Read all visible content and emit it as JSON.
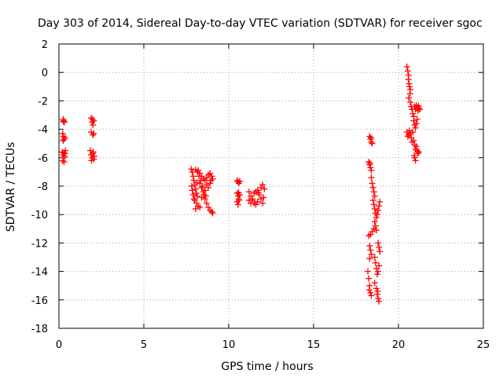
{
  "chart_data": {
    "type": "scatter",
    "title": "Day 303 of 2014, Sidereal Day-to-day VTEC variation (SDTVAR) for receiver sgoc",
    "xlabel": "GPS time / hours",
    "ylabel": "SDTVAR / TECUs",
    "xlim": [
      0,
      25
    ],
    "ylim": [
      -18,
      2
    ],
    "xticks": [
      0,
      5,
      10,
      15,
      20,
      25
    ],
    "yticks": [
      2,
      0,
      -2,
      -4,
      -6,
      -8,
      -10,
      -12,
      -14,
      -16,
      -18
    ],
    "grid": true,
    "marker": "+",
    "color": "#ff0000",
    "series": [
      {
        "name": "SDTVAR",
        "points": [
          [
            0.25,
            -3.3
          ],
          [
            0.28,
            -3.4
          ],
          [
            0.32,
            -3.5
          ],
          [
            0.26,
            -3.45
          ],
          [
            0.22,
            -4.3
          ],
          [
            0.26,
            -4.5
          ],
          [
            0.3,
            -4.7
          ],
          [
            0.35,
            -4.6
          ],
          [
            0.24,
            -4.8
          ],
          [
            0.2,
            -5.6
          ],
          [
            0.25,
            -5.8
          ],
          [
            0.3,
            -6.0
          ],
          [
            0.35,
            -5.7
          ],
          [
            0.38,
            -5.5
          ],
          [
            0.22,
            -6.2
          ],
          [
            0.3,
            -6.3
          ],
          [
            0.32,
            -5.9
          ],
          [
            0.28,
            -5.65
          ],
          [
            1.9,
            -3.2
          ],
          [
            1.95,
            -3.5
          ],
          [
            2.0,
            -3.7
          ],
          [
            2.05,
            -3.4
          ],
          [
            1.98,
            -3.3
          ],
          [
            1.9,
            -4.2
          ],
          [
            2.0,
            -4.4
          ],
          [
            2.05,
            -4.3
          ],
          [
            1.85,
            -5.5
          ],
          [
            1.9,
            -5.8
          ],
          [
            1.95,
            -6.0
          ],
          [
            2.0,
            -5.7
          ],
          [
            2.05,
            -6.1
          ],
          [
            2.08,
            -5.9
          ],
          [
            1.92,
            -6.2
          ],
          [
            2.02,
            -5.6
          ],
          [
            7.8,
            -6.8
          ],
          [
            7.85,
            -7.0
          ],
          [
            7.9,
            -7.3
          ],
          [
            7.95,
            -7.6
          ],
          [
            8.0,
            -7.9
          ],
          [
            8.05,
            -8.2
          ],
          [
            8.1,
            -8.5
          ],
          [
            8.15,
            -8.7
          ],
          [
            7.82,
            -8.0
          ],
          [
            7.86,
            -8.3
          ],
          [
            7.9,
            -8.6
          ],
          [
            8.0,
            -9.0
          ],
          [
            8.1,
            -9.2
          ],
          [
            8.2,
            -9.4
          ],
          [
            8.3,
            -9.5
          ],
          [
            8.05,
            -9.6
          ],
          [
            8.2,
            -6.9
          ],
          [
            8.3,
            -7.1
          ],
          [
            8.4,
            -7.3
          ],
          [
            8.5,
            -7.5
          ],
          [
            8.6,
            -7.6
          ],
          [
            8.7,
            -7.4
          ],
          [
            8.8,
            -7.2
          ],
          [
            8.9,
            -7.1
          ],
          [
            9.0,
            -7.3
          ],
          [
            9.05,
            -7.5
          ],
          [
            8.3,
            -7.8
          ],
          [
            8.4,
            -8.1
          ],
          [
            8.5,
            -8.4
          ],
          [
            8.45,
            -8.0
          ],
          [
            8.35,
            -7.6
          ],
          [
            8.25,
            -7.3
          ],
          [
            8.15,
            -7.0
          ],
          [
            8.05,
            -6.85
          ],
          [
            8.55,
            -8.6
          ],
          [
            8.6,
            -8.9
          ],
          [
            8.7,
            -9.2
          ],
          [
            8.8,
            -9.5
          ],
          [
            8.9,
            -9.7
          ],
          [
            9.0,
            -9.8
          ],
          [
            9.05,
            -9.9
          ],
          [
            8.65,
            -8.7
          ],
          [
            8.7,
            -7.9
          ],
          [
            8.8,
            -8.1
          ],
          [
            8.9,
            -7.8
          ],
          [
            8.95,
            -7.6
          ],
          [
            8.6,
            -8.3
          ],
          [
            8.4,
            -8.8
          ],
          [
            7.95,
            -8.9
          ],
          [
            8.12,
            -7.75
          ],
          [
            10.5,
            -7.6
          ],
          [
            10.55,
            -7.7
          ],
          [
            10.6,
            -7.8
          ],
          [
            10.65,
            -7.65
          ],
          [
            10.5,
            -8.5
          ],
          [
            10.55,
            -8.7
          ],
          [
            10.6,
            -8.9
          ],
          [
            10.65,
            -8.6
          ],
          [
            10.58,
            -8.45
          ],
          [
            10.5,
            -9.1
          ],
          [
            10.55,
            -9.3
          ],
          [
            10.6,
            -9.0
          ],
          [
            11.2,
            -8.4
          ],
          [
            11.3,
            -8.7
          ],
          [
            11.4,
            -9.0
          ],
          [
            11.5,
            -9.2
          ],
          [
            11.6,
            -9.3
          ],
          [
            11.7,
            -9.1
          ],
          [
            11.2,
            -9.0
          ],
          [
            11.3,
            -9.2
          ],
          [
            11.4,
            -8.9
          ],
          [
            11.5,
            -8.5
          ],
          [
            11.6,
            -8.4
          ],
          [
            11.7,
            -8.3
          ],
          [
            11.8,
            -8.6
          ],
          [
            11.9,
            -8.9
          ],
          [
            12.0,
            -9.2
          ],
          [
            12.05,
            -8.8
          ],
          [
            12.1,
            -8.2
          ],
          [
            12.0,
            -7.9
          ],
          [
            11.9,
            -8.1
          ],
          [
            11.75,
            -8.45
          ],
          [
            18.3,
            -4.5
          ],
          [
            18.35,
            -4.7
          ],
          [
            18.4,
            -4.9
          ],
          [
            18.38,
            -4.6
          ],
          [
            18.45,
            -5.0
          ],
          [
            18.25,
            -6.3
          ],
          [
            18.3,
            -6.5
          ],
          [
            18.35,
            -6.7
          ],
          [
            18.4,
            -6.9
          ],
          [
            18.32,
            -6.4
          ],
          [
            18.4,
            -7.4
          ],
          [
            18.45,
            -7.8
          ],
          [
            18.5,
            -8.1
          ],
          [
            18.55,
            -8.4
          ],
          [
            18.6,
            -8.7
          ],
          [
            18.5,
            -9.0
          ],
          [
            18.55,
            -9.3
          ],
          [
            18.6,
            -9.6
          ],
          [
            18.65,
            -9.9
          ],
          [
            18.7,
            -10.2
          ],
          [
            18.75,
            -10.0
          ],
          [
            18.8,
            -9.7
          ],
          [
            18.85,
            -9.4
          ],
          [
            18.9,
            -9.1
          ],
          [
            18.6,
            -10.5
          ],
          [
            18.65,
            -10.8
          ],
          [
            18.7,
            -11.1
          ],
          [
            18.55,
            -11.0
          ],
          [
            18.45,
            -11.2
          ],
          [
            18.35,
            -11.4
          ],
          [
            18.25,
            -11.5
          ],
          [
            18.3,
            -12.2
          ],
          [
            18.35,
            -12.5
          ],
          [
            18.4,
            -12.8
          ],
          [
            18.3,
            -13.1
          ],
          [
            18.8,
            -12.0
          ],
          [
            18.85,
            -12.3
          ],
          [
            18.9,
            -12.6
          ],
          [
            18.6,
            -13.0
          ],
          [
            18.65,
            -13.4
          ],
          [
            18.7,
            -13.8
          ],
          [
            18.75,
            -14.2
          ],
          [
            18.8,
            -14.0
          ],
          [
            18.85,
            -13.6
          ],
          [
            18.2,
            -14.0
          ],
          [
            18.25,
            -14.5
          ],
          [
            18.3,
            -15.0
          ],
          [
            18.35,
            -15.5
          ],
          [
            18.4,
            -15.7
          ],
          [
            18.28,
            -15.3
          ],
          [
            18.6,
            -14.8
          ],
          [
            18.7,
            -15.2
          ],
          [
            18.75,
            -15.6
          ],
          [
            18.8,
            -15.9
          ],
          [
            18.85,
            -16.1
          ],
          [
            18.78,
            -15.4
          ],
          [
            20.5,
            0.4
          ],
          [
            20.55,
            0.1
          ],
          [
            20.6,
            -0.2
          ],
          [
            20.58,
            -0.5
          ],
          [
            20.62,
            -0.8
          ],
          [
            20.65,
            -1.0
          ],
          [
            20.7,
            -1.2
          ],
          [
            20.68,
            -1.5
          ],
          [
            20.6,
            -1.8
          ],
          [
            20.7,
            -2.1
          ],
          [
            20.75,
            -2.4
          ],
          [
            20.8,
            -2.6
          ],
          [
            20.85,
            -2.9
          ],
          [
            20.9,
            -3.1
          ],
          [
            20.95,
            -2.4
          ],
          [
            21.0,
            -2.6
          ],
          [
            21.05,
            -2.3
          ],
          [
            21.1,
            -2.5
          ],
          [
            21.15,
            -2.7
          ],
          [
            21.2,
            -2.5
          ],
          [
            21.25,
            -2.6
          ],
          [
            21.18,
            -2.35
          ],
          [
            20.9,
            -3.4
          ],
          [
            20.95,
            -3.7
          ],
          [
            21.0,
            -3.9
          ],
          [
            21.05,
            -3.6
          ],
          [
            21.1,
            -3.3
          ],
          [
            20.5,
            -4.2
          ],
          [
            20.55,
            -4.5
          ],
          [
            20.6,
            -4.4
          ],
          [
            20.65,
            -4.1
          ],
          [
            20.7,
            -4.3
          ],
          [
            20.75,
            -4.6
          ],
          [
            20.8,
            -4.9
          ],
          [
            20.85,
            -4.2
          ],
          [
            20.9,
            -4.8
          ],
          [
            20.95,
            -5.1
          ],
          [
            21.0,
            -5.4
          ],
          [
            21.05,
            -5.2
          ],
          [
            21.1,
            -5.5
          ],
          [
            21.15,
            -5.7
          ],
          [
            21.2,
            -5.6
          ],
          [
            20.95,
            -6.0
          ],
          [
            21.0,
            -6.2
          ],
          [
            20.92,
            -5.85
          ]
        ]
      }
    ]
  }
}
